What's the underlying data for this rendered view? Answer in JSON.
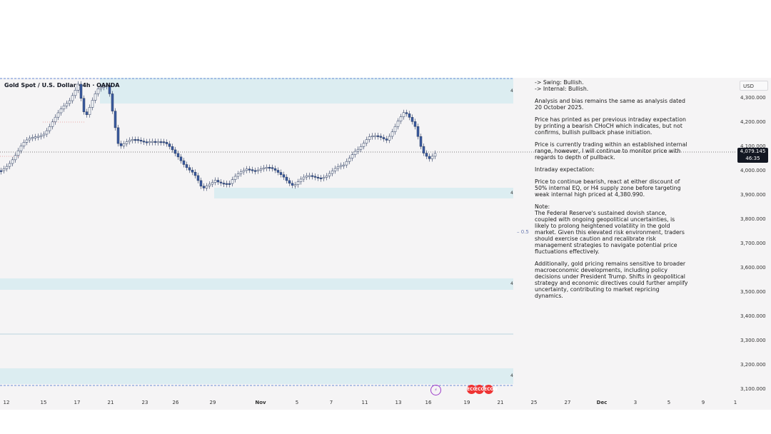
{
  "header": {
    "symbol_title": "Gold Spot / U.S. Dollar · 4h · OANDA"
  },
  "price_axis": {
    "currency": "USD",
    "ticks": [
      "4,300.000",
      "4,200.000",
      "4,100.000",
      "4,000.000",
      "3,900.000",
      "3,800.000",
      "3,700.000",
      "3,600.000",
      "3,500.000",
      "3,400.000",
      "3,300.000",
      "3,200.000",
      "3,100.000"
    ],
    "current_price": "4,079.145",
    "countdown": "46:35"
  },
  "date_axis": {
    "ticks": [
      "12",
      "15",
      "17",
      "21",
      "23",
      "26",
      "29",
      "Nov",
      "5",
      "7",
      "11",
      "13",
      "16",
      "19",
      "21",
      "25",
      "27",
      "Dec",
      "3",
      "5",
      "9",
      "1"
    ]
  },
  "zones": {
    "label": "4"
  },
  "fib": {
    "label": "0.5"
  },
  "analysis": {
    "swing": "-> Swing:  Bullish.",
    "internal": "-> Internal:  Bullish.",
    "p1": "Analysis and bias remains the same as analysis dated 20 October 2025.",
    "p2": "Price has printed as per previous intraday expectation by printing a bearish CHoCH which indicates, but not confirms, bullish pullback phase initiation.",
    "p3": "Price is currently trading within an established internal range, however, I will continue to monitor price with regards to depth of pullback.",
    "p4": "Intraday expectation:",
    "p5": "Price to continue bearish, react at either discount of 50% internal EQ, or H4 supply zone before targeting weak internal high priced at 4,380.990.",
    "p6": "Note:\nThe Federal Reserve's sustained dovish stance, coupled with ongoing geopolitical uncertainties, is likely to prolong heightened volatility in the gold market. Given this elevated risk environment, traders should exercise caution and recalibrate risk management strategies to navigate potential price fluctuations effectively.",
    "p7": "Additionally, gold pricing remains sensitive to broader macroeconomic developments, including policy decisions under President Trump. Shifts in geopolitical strategy and economic directives could further amplify uncertainty, contributing to market repricing dynamics."
  },
  "events": {
    "flash": "⚡",
    "econ": "ECON"
  },
  "colors": {
    "up": "#2a3a5e",
    "down": "#3a5ba0",
    "zone": "#dcedf1",
    "background": "#f5f4f5",
    "badge": "#131722"
  }
}
